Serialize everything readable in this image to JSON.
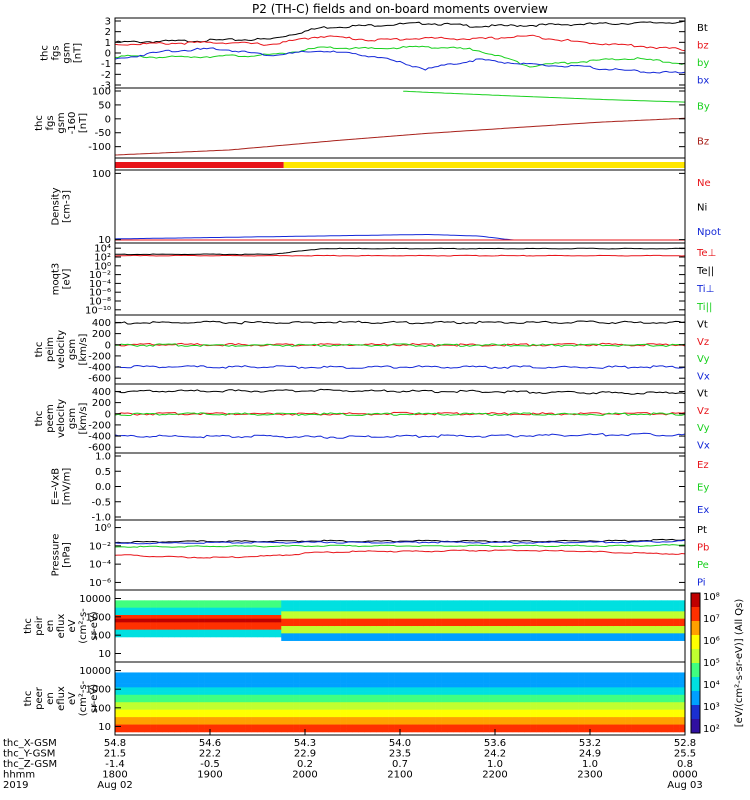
{
  "title": "P2 (TH-C) fields and on-board moments overview",
  "chart_data": [
    {
      "type": "line",
      "ylabel": [
        "thc",
        "fgs",
        "gsm",
        "[nT]"
      ],
      "ylim": [
        -3,
        3
      ],
      "yticks": [
        "3",
        "2",
        "1",
        "0",
        "-1",
        "-2",
        "-3"
      ],
      "yticks_values": [
        3,
        2,
        1,
        0,
        -1,
        -2,
        -3
      ],
      "legend": [
        "Bt",
        "bz",
        "by",
        "bx"
      ],
      "legend_colors": [
        "#000000",
        "#e8141a",
        "#19d01e",
        "#1428d8"
      ],
      "series": [
        {
          "name": "Bt",
          "values": [
            1.0,
            1.1,
            1.2,
            1.3,
            2.4,
            2.6,
            2.8,
            2.5,
            2.6,
            2.7,
            2.8,
            2.9
          ]
        },
        {
          "name": "bz",
          "values": [
            0.8,
            0.9,
            1.0,
            0.8,
            1.6,
            1.2,
            1.4,
            1.3,
            1.6,
            1.0,
            0.7,
            0.3
          ]
        },
        {
          "name": "by",
          "values": [
            -0.3,
            -0.4,
            -0.3,
            -0.2,
            0.5,
            0.4,
            0.6,
            0.3,
            -1.2,
            -0.8,
            -0.5,
            -1.0
          ]
        },
        {
          "name": "bx",
          "values": [
            -0.6,
            0.2,
            0.4,
            -0.2,
            0.2,
            -0.3,
            -1.5,
            -0.6,
            -1.1,
            -1.3,
            -1.7,
            -1.9
          ]
        }
      ]
    },
    {
      "type": "line",
      "ylabel": [
        "thc",
        "fgs",
        "gsm",
        "-160",
        "[nT]"
      ],
      "ylim": [
        -130,
        100
      ],
      "yticks": [
        "100",
        "50",
        "0",
        "-50",
        "-100"
      ],
      "yticks_values": [
        100,
        50,
        0,
        -50,
        -100
      ],
      "legend": [
        "By",
        "Bz"
      ],
      "legend_colors": [
        "#19d01e",
        "#a8201a"
      ],
      "series": [
        {
          "name": "By",
          "x": [
            0.0,
            0.4,
            0.55,
            0.7,
            0.85,
            1.0
          ],
          "values": [
            150,
            110,
            95,
            82,
            70,
            60
          ]
        },
        {
          "name": "Bz",
          "x": [
            0.0,
            0.2,
            0.4,
            0.55,
            0.7,
            0.85,
            1.0
          ],
          "values": [
            -130,
            -112,
            -76,
            -52,
            -32,
            -12,
            2
          ]
        }
      ]
    },
    {
      "type": "bar",
      "ylabel": [],
      "segments": [
        {
          "from": 0.0,
          "to": 0.296,
          "color": "#e8141a"
        },
        {
          "from": 0.296,
          "to": 1.0,
          "color": "#ffe600"
        }
      ]
    },
    {
      "type": "line",
      "ylabel": [
        "Density",
        "[cm-3]"
      ],
      "yscale": "log",
      "yticks": [
        "100",
        "10"
      ],
      "yticks_values": [
        100,
        10
      ],
      "legend": [
        "Ne",
        "Ni",
        "Npot"
      ],
      "legend_colors": [
        "#e8141a",
        "#000000",
        "#1428d8"
      ],
      "series": [
        {
          "name": "Npot",
          "values": [
            11,
            12,
            13,
            14,
            15,
            16,
            17,
            15,
            7,
            6.5,
            7,
            7.5
          ]
        },
        {
          "name": "Ni",
          "values": [
            5.5,
            5.5,
            5.6,
            5.7,
            6,
            6,
            6.2,
            6,
            5.8,
            5.6,
            5.8,
            6
          ]
        },
        {
          "name": "Ne",
          "values": [
            5.2,
            5.4,
            5.5,
            5.6,
            5.8,
            6,
            5.9,
            6,
            5.6,
            5.5,
            5.6,
            5.8
          ]
        }
      ]
    },
    {
      "type": "line",
      "ylabel": [
        "moqt3",
        "[eV]"
      ],
      "yscale": "log",
      "yticks": [
        "10⁴",
        "10²",
        "10⁰",
        "10⁻²",
        "10⁻⁴",
        "10⁻⁶",
        "10⁻⁸",
        "10⁻¹⁰"
      ],
      "yticks_values": [
        4,
        2,
        0,
        -2,
        -4,
        -6,
        -8,
        -10
      ],
      "legend": [
        "Te⊥",
        "Te||",
        "Ti⊥",
        "Ti||"
      ],
      "legend_colors": [
        "#e8141a",
        "#000000",
        "#1428d8",
        "#19d01e"
      ],
      "series": [
        {
          "name": "Te",
          "values": [
            2.3,
            2.3,
            2.3,
            2.3,
            2.3,
            2.3,
            2.3,
            2.3,
            2.3,
            2.3,
            2.3,
            2.3
          ]
        },
        {
          "name": "Ti",
          "values": [
            2.6,
            2.6,
            2.6,
            2.6,
            3.9,
            3.9,
            3.9,
            3.9,
            3.9,
            3.9,
            3.9,
            3.9
          ]
        }
      ]
    },
    {
      "type": "line",
      "ylabel": [
        "thc",
        "peim",
        "velocity",
        "gsm",
        "[km/s]"
      ],
      "ylim": [
        -650,
        480
      ],
      "yticks": [
        "400",
        "200",
        "0",
        "-200",
        "-400",
        "-600"
      ],
      "yticks_values": [
        400,
        200,
        0,
        -200,
        -400,
        -600
      ],
      "legend": [
        "Vt",
        "Vz",
        "Vy",
        "Vx"
      ],
      "legend_colors": [
        "#000000",
        "#e8141a",
        "#19d01e",
        "#1428d8"
      ],
      "series": [
        {
          "name": "Vt",
          "values": [
            390,
            395,
            400,
            395,
            405,
            400,
            398,
            402,
            400,
            405,
            398,
            400
          ]
        },
        {
          "name": "Vz",
          "values": [
            0,
            5,
            0,
            -5,
            0,
            5,
            0,
            -5,
            0,
            5,
            0,
            0
          ]
        },
        {
          "name": "Vy",
          "values": [
            -10,
            -5,
            -10,
            -5,
            -10,
            -5,
            -10,
            -5,
            -10,
            -5,
            -10,
            -10
          ]
        },
        {
          "name": "Vx",
          "values": [
            -390,
            -395,
            -400,
            -395,
            -405,
            -400,
            -398,
            -402,
            -400,
            -405,
            -398,
            -400
          ]
        }
      ]
    },
    {
      "type": "line",
      "ylabel": [
        "thc",
        "peem",
        "velocity",
        "gsm",
        "[km/s]"
      ],
      "ylim": [
        -650,
        480
      ],
      "yticks": [
        "400",
        "200",
        "0",
        "-200",
        "-400",
        "-600"
      ],
      "yticks_values": [
        400,
        200,
        0,
        -200,
        -400,
        -600
      ],
      "legend": [
        "Vt",
        "Vz",
        "Vy",
        "Vx"
      ],
      "legend_colors": [
        "#000000",
        "#e8141a",
        "#19d01e",
        "#1428d8"
      ],
      "series": [
        {
          "name": "Vt",
          "values": [
            400,
            405,
            410,
            405,
            420,
            410,
            400,
            402,
            390,
            380,
            370,
            380
          ]
        },
        {
          "name": "Vz",
          "values": [
            -5,
            0,
            5,
            0,
            -5,
            0,
            5,
            0,
            -5,
            0,
            5,
            0
          ]
        },
        {
          "name": "Vy",
          "values": [
            -10,
            -5,
            -5,
            -10,
            -5,
            -10,
            -5,
            -10,
            -5,
            -10,
            -5,
            -10
          ]
        },
        {
          "name": "Vx",
          "values": [
            -400,
            -405,
            -410,
            -405,
            -420,
            -410,
            -400,
            -402,
            -390,
            -380,
            -370,
            -380
          ]
        }
      ]
    },
    {
      "type": "line",
      "ylabel": [
        "E=-VxB",
        "[mV/m]"
      ],
      "ylim": [
        -1.0,
        1.0
      ],
      "yticks": [
        "1.0",
        "0.5",
        "0.0",
        "-0.5",
        "-1.0"
      ],
      "yticks_values": [
        1.0,
        0.5,
        0.0,
        -0.5,
        -1.0
      ],
      "legend": [
        "Ez",
        "Ey",
        "Ex"
      ],
      "legend_colors": [
        "#e8141a",
        "#19d01e",
        "#1428d8"
      ],
      "series": []
    },
    {
      "type": "line",
      "ylabel": [
        "Pressure",
        "[nPa]"
      ],
      "yscale": "log",
      "yticks": [
        "10⁰",
        "10⁻²",
        "10⁻⁴",
        "10⁻⁶"
      ],
      "yticks_values": [
        0,
        -2,
        -4,
        -6
      ],
      "legend": [
        "Pt",
        "Pb",
        "Pe",
        "Pi"
      ],
      "legend_colors": [
        "#000000",
        "#e8141a",
        "#19d01e",
        "#1428d8"
      ],
      "series": [
        {
          "name": "Pt",
          "values": [
            -1.6,
            -1.55,
            -1.5,
            -1.5,
            -1.45,
            -1.5,
            -1.45,
            -1.5,
            -1.5,
            -1.45,
            -1.45,
            -1.3
          ]
        },
        {
          "name": "Pi",
          "values": [
            -1.75,
            -1.7,
            -1.65,
            -1.65,
            -1.6,
            -1.65,
            -1.6,
            -1.65,
            -1.65,
            -1.6,
            -1.6,
            -1.45
          ]
        },
        {
          "name": "Pe",
          "values": [
            -2.1,
            -2.1,
            -2.05,
            -2.05,
            -2.0,
            -2.0,
            -2.0,
            -2.0,
            -2.0,
            -2.0,
            -2.0,
            -1.9
          ]
        },
        {
          "name": "Pb",
          "values": [
            -3.0,
            -3.2,
            -3.3,
            -3.1,
            -2.7,
            -2.6,
            -2.6,
            -2.5,
            -2.5,
            -2.6,
            -2.8,
            -2.9
          ]
        }
      ]
    },
    {
      "type": "heatmap",
      "ylabel": [
        "thc",
        "peir",
        "en",
        "eflux",
        "eV",
        "(cm²-s-",
        "sr-eV)"
      ],
      "yscale": "log",
      "yticks": [
        "10000",
        "1000",
        "100",
        "10"
      ],
      "yticks_values": [
        10000,
        1000,
        100,
        10
      ]
    },
    {
      "type": "heatmap",
      "ylabel": [
        "thc",
        "peer",
        "en",
        "eflux",
        "eV",
        "(cm²-s-",
        "sr-eV)"
      ],
      "yscale": "log",
      "yticks": [
        "10000",
        "1000",
        "100",
        "10"
      ],
      "yticks_values": [
        10000,
        1000,
        100,
        10
      ]
    }
  ],
  "colorbar": {
    "ticks": [
      "10⁸",
      "10⁷",
      "10⁶",
      "10⁵",
      "10⁴",
      "10³",
      "10²"
    ],
    "label": "[eV/(cm²-s-sr-eV)] (All Qs)"
  },
  "xaxis": {
    "row_labels": [
      "thc_X-GSM",
      "thc_Y-GSM",
      "thc_Z-GSM",
      "hhmm",
      "2019"
    ],
    "columns": [
      {
        "values": [
          "54.8",
          "21.5",
          "-1.4",
          "1800",
          "Aug 02"
        ]
      },
      {
        "values": [
          "54.6",
          "22.2",
          "-0.5",
          "1900",
          ""
        ]
      },
      {
        "values": [
          "54.3",
          "22.9",
          "0.2",
          "2000",
          ""
        ]
      },
      {
        "values": [
          "54.0",
          "23.5",
          "0.7",
          "2100",
          ""
        ]
      },
      {
        "values": [
          "53.6",
          "24.2",
          "1.0",
          "2200",
          ""
        ]
      },
      {
        "values": [
          "53.2",
          "24.9",
          "1.0",
          "2300",
          ""
        ]
      },
      {
        "values": [
          "52.8",
          "25.5",
          "0.8",
          "0000",
          "Aug 03"
        ]
      }
    ]
  }
}
